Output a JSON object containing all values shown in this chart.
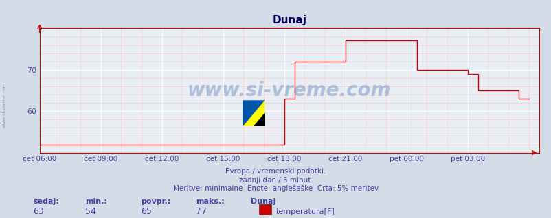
{
  "title": "Dunaj",
  "bg_color": "#d4dce8",
  "plot_bg_color": "#e8eef4",
  "line_color": "#cc0000",
  "grid_color": "#ffffff",
  "minor_grid_color": "#ffcccc",
  "axis_label_color": "#4444aa",
  "title_color": "#000066",
  "text_color": "#4444aa",
  "ylim": [
    50,
    80
  ],
  "watermark": "www.si-vreme.com",
  "subtitle1": "Evropa / vremenski podatki.",
  "subtitle2": "zadnji dan / 5 minut.",
  "subtitle3": "Meritve: minimalne  Enote: anglešaške  Črta: 5% meritev",
  "footer_labels": [
    "sedaj:",
    "min.:",
    "povpr.:",
    "maks.:",
    "Dunaj"
  ],
  "footer_values": [
    "63",
    "54",
    "65",
    "77"
  ],
  "legend_label": "temperatura[F]",
  "legend_color": "#cc0000",
  "xtick_labels": [
    "čet 06:00",
    "čet 09:00",
    "čet 12:00",
    "čet 15:00",
    "čet 18:00",
    "čet 21:00",
    "pet 00:00",
    "pet 03:00"
  ],
  "xtick_positions": [
    0,
    3,
    6,
    9,
    12,
    15,
    18,
    21
  ],
  "x_hours": [
    0,
    5.5,
    5.51,
    6.0,
    6.01,
    9.0,
    9.01,
    9.5,
    9.51,
    12.0,
    12.01,
    12.5,
    12.51,
    15.0,
    15.5,
    16.0,
    16.01,
    18.5,
    18.51,
    19.0,
    19.01,
    21.0,
    21.01,
    21.5,
    21.51,
    23.5,
    23.51,
    24.0
  ],
  "y_values": [
    52,
    52,
    52,
    52,
    52,
    52,
    52,
    52,
    52,
    63,
    63,
    72,
    72,
    77,
    77,
    77,
    77,
    77,
    70,
    70,
    70,
    70,
    69,
    65,
    65,
    65,
    63,
    63
  ],
  "xlim": [
    0,
    24.5
  ]
}
